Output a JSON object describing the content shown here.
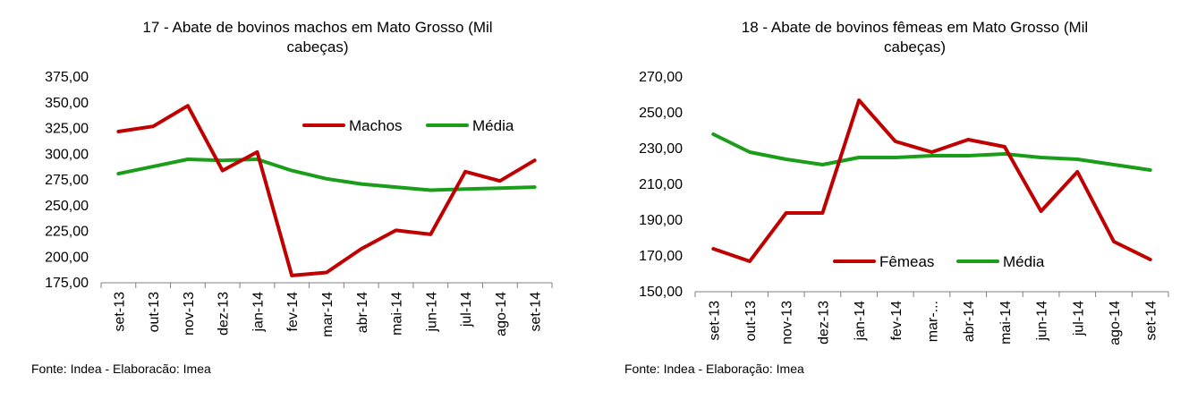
{
  "charts": [
    {
      "title_line1": "17 - Abate de bovinos machos em Mato Grosso (Mil",
      "title_line2": "cabeças)",
      "source": "Fonte: Indea - Elaboracão: Imea"
    },
    {
      "title_line1": "18 - Abate de bovinos fêmeas em Mato Grosso (Mil",
      "title_line2": "cabeças)",
      "source": "Fonte: Indea - Elaboração: Imea"
    }
  ],
  "chart_data": [
    {
      "type": "line",
      "title": "17 - Abate de bovinos machos em Mato Grosso (Mil cabeças)",
      "categories": [
        "set-13",
        "out-13",
        "nov-13",
        "dez-13",
        "jan-14",
        "fev-14",
        "mar-14",
        "abr-14",
        "mai-14",
        "jun-14",
        "jul-14",
        "ago-14",
        "set-14"
      ],
      "yticks": [
        "175,00",
        "200,00",
        "225,00",
        "250,00",
        "275,00",
        "300,00",
        "325,00",
        "350,00",
        "375,00"
      ],
      "ylim": [
        175,
        375
      ],
      "legend_position": "top-right",
      "series": [
        {
          "name": "Machos",
          "color": "#c00000",
          "values": [
            322,
            327,
            347,
            284,
            302,
            182,
            185,
            208,
            226,
            222,
            283,
            274,
            294
          ]
        },
        {
          "name": "Média",
          "color": "#1a9e1a",
          "values": [
            281,
            288,
            295,
            294,
            295,
            284,
            276,
            271,
            268,
            265,
            266,
            267,
            268
          ]
        }
      ]
    },
    {
      "type": "line",
      "title": "18 - Abate de bovinos fêmeas em Mato Grosso (Mil cabeças)",
      "categories": [
        "set-13",
        "out-13",
        "nov-13",
        "dez-13",
        "jan-14",
        "fev-14",
        "mar-...",
        "abr-14",
        "mai-14",
        "jun-14",
        "jul-14",
        "ago-14",
        "set-14"
      ],
      "yticks": [
        "150,00",
        "170,00",
        "190,00",
        "210,00",
        "230,00",
        "250,00",
        "270,00"
      ],
      "ylim": [
        150,
        270
      ],
      "legend_position": "bottom-right",
      "series": [
        {
          "name": "Fêmeas",
          "color": "#c00000",
          "values": [
            174,
            167,
            194,
            194,
            257,
            234,
            228,
            235,
            231,
            195,
            217,
            178,
            168
          ]
        },
        {
          "name": "Média",
          "color": "#1a9e1a",
          "values": [
            238,
            228,
            224,
            221,
            225,
            225,
            226,
            226,
            227,
            225,
            224,
            221,
            218
          ]
        }
      ]
    }
  ]
}
